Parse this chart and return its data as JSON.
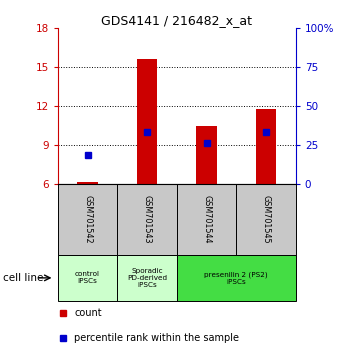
{
  "title": "GDS4141 / 216482_x_at",
  "samples": [
    "GSM701542",
    "GSM701543",
    "GSM701544",
    "GSM701545"
  ],
  "red_values": [
    6.15,
    15.65,
    10.5,
    11.8
  ],
  "blue_values": [
    8.25,
    10.0,
    9.2,
    10.05
  ],
  "red_baseline": 6.0,
  "ylim_left": [
    6,
    18
  ],
  "ylim_right": [
    0,
    100
  ],
  "yticks_left": [
    6,
    9,
    12,
    15,
    18
  ],
  "yticks_right": [
    0,
    25,
    50,
    75,
    100
  ],
  "ytick_labels_right": [
    "0",
    "25",
    "50",
    "75",
    "100%"
  ],
  "red_color": "#cc0000",
  "blue_color": "#0000cc",
  "sample_bg_color": "#c8c8c8",
  "cell_line_label": "cell line",
  "legend_red": "count",
  "legend_blue": "percentile rank within the sample",
  "bar_width": 0.35,
  "group_defs": [
    [
      0,
      1,
      "#ccffcc",
      "control\nIPSCs"
    ],
    [
      1,
      2,
      "#ccffcc",
      "Sporadic\nPD-derived\niPSCs"
    ],
    [
      2,
      4,
      "#44dd44",
      "presenilin 2 (PS2)\niPSCs"
    ]
  ]
}
